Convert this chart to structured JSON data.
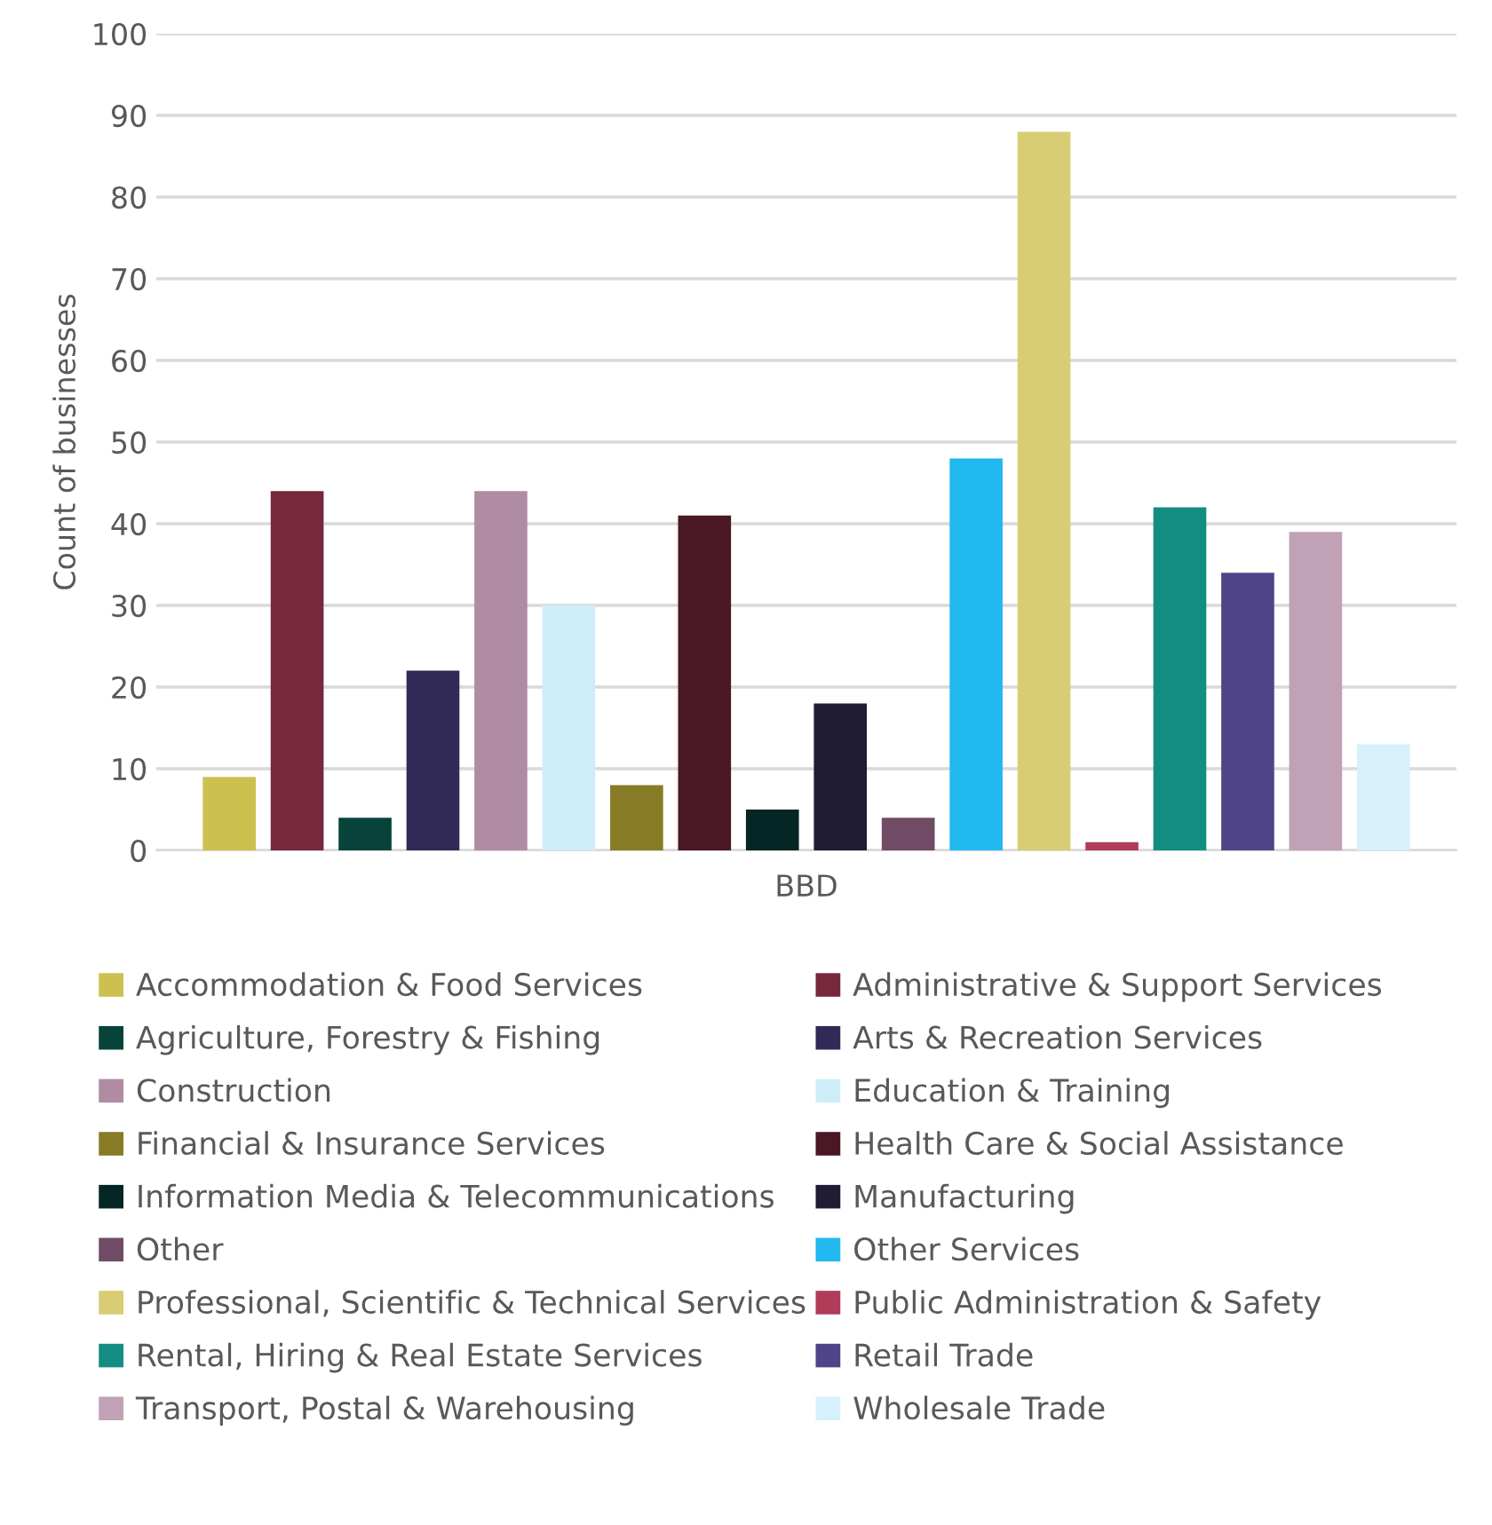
{
  "chart_data": {
    "type": "bar",
    "xlabel": "BBD",
    "ylabel": "Count of businesses",
    "categories": [
      null
    ],
    "ylim": [
      0,
      100
    ],
    "yticks": [
      0,
      10,
      20,
      30,
      40,
      50,
      60,
      70,
      80,
      90,
      100
    ],
    "grid": "y",
    "legend": "bottom",
    "series": [
      {
        "name": "Accommodation & Food Services",
        "color": "#ccc050",
        "values": [
          9
        ]
      },
      {
        "name": "Administrative & Support Services",
        "color": "#76283c",
        "values": [
          44
        ]
      },
      {
        "name": "Agriculture, Forestry & Fishing",
        "color": "#08433b",
        "values": [
          4
        ]
      },
      {
        "name": "Arts & Recreation Services",
        "color": "#322a56",
        "values": [
          22
        ]
      },
      {
        "name": "Construction",
        "color": "#b08ba4",
        "values": [
          44
        ]
      },
      {
        "name": "Education & Training",
        "color": "#cdeef9",
        "values": [
          30
        ]
      },
      {
        "name": "Financial & Insurance Services",
        "color": "#877b26",
        "values": [
          8
        ]
      },
      {
        "name": "Health Care & Social Assistance",
        "color": "#491824",
        "values": [
          41
        ]
      },
      {
        "name": "Information Media & Telecommunications",
        "color": "#052625",
        "values": [
          5
        ]
      },
      {
        "name": "Manufacturing",
        "color": "#201c34",
        "values": [
          18
        ]
      },
      {
        "name": "Other",
        "color": "#704c66",
        "values": [
          4
        ]
      },
      {
        "name": "Other Services",
        "color": "#22b8f0",
        "values": [
          48
        ]
      },
      {
        "name": "Professional, Scientific & Technical Services",
        "color": "#d8cd74",
        "values": [
          88
        ]
      },
      {
        "name": "Public Administration & Safety",
        "color": "#b03c5a",
        "values": [
          1
        ]
      },
      {
        "name": "Rental, Hiring & Real Estate Services",
        "color": "#138d82",
        "values": [
          42
        ]
      },
      {
        "name": "Retail Trade",
        "color": "#504488",
        "values": [
          34
        ]
      },
      {
        "name": "Transport, Postal & Warehousing",
        "color": "#c0a1b6",
        "values": [
          39
        ]
      },
      {
        "name": "Wholesale Trade",
        "color": "#d6f1fb",
        "values": [
          13
        ]
      }
    ]
  }
}
